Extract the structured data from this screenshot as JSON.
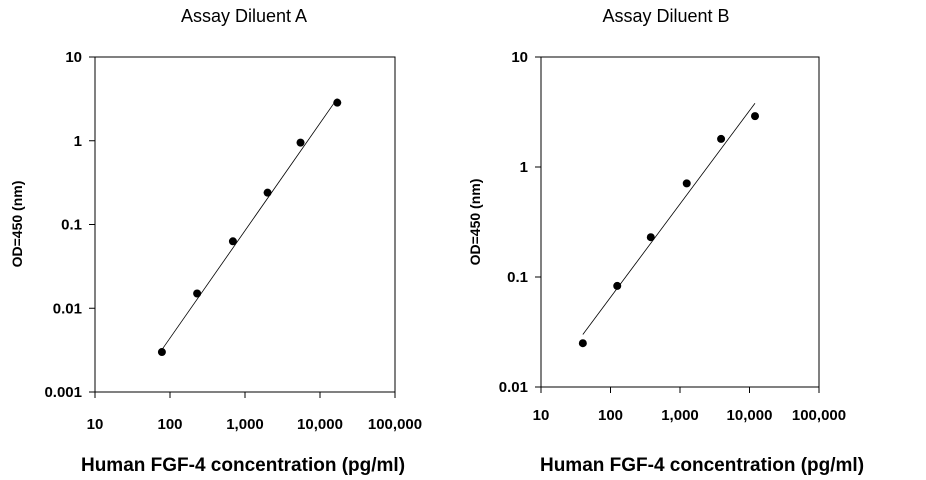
{
  "chart_data": [
    {
      "type": "scatter",
      "title": "Assay Diluent A",
      "xlabel": "Human FGF-4 concentration (pg/ml)",
      "ylabel": "OD=450 (nm)",
      "x_scale": "log",
      "y_scale": "log",
      "xlim": [
        10,
        100000
      ],
      "ylim": [
        0.001,
        10
      ],
      "x_ticks": [
        "10",
        "100",
        "1,000",
        "10,000",
        "100,000"
      ],
      "y_ticks": [
        "0.001",
        "0.01",
        "0.1",
        "1",
        "10"
      ],
      "grid": false,
      "series": [
        {
          "x": [
            78,
            230,
            690,
            2000,
            5500,
            17000
          ],
          "y": [
            0.003,
            0.015,
            0.063,
            0.24,
            0.95,
            2.85
          ]
        }
      ],
      "fit_line": {
        "x": [
          78,
          17000
        ],
        "y": [
          0.0032,
          3.2
        ]
      }
    },
    {
      "type": "scatter",
      "title": "Assay Diluent B",
      "xlabel": "Human FGF-4 concentration (pg/ml)",
      "ylabel": "OD=450 (nm)",
      "x_scale": "log",
      "y_scale": "log",
      "xlim": [
        10,
        100000
      ],
      "ylim": [
        0.01,
        10
      ],
      "x_ticks": [
        "10",
        "100",
        "1,000",
        "10,000",
        "100,000"
      ],
      "y_ticks": [
        "0.01",
        "0.1",
        "1",
        "10"
      ],
      "grid": false,
      "series": [
        {
          "x": [
            40,
            125,
            380,
            1250,
            3900,
            12000
          ],
          "y": [
            0.025,
            0.083,
            0.23,
            0.71,
            1.8,
            2.9
          ]
        }
      ],
      "fit_line": {
        "x": [
          40,
          12000
        ],
        "y": [
          0.03,
          3.8
        ]
      }
    }
  ]
}
